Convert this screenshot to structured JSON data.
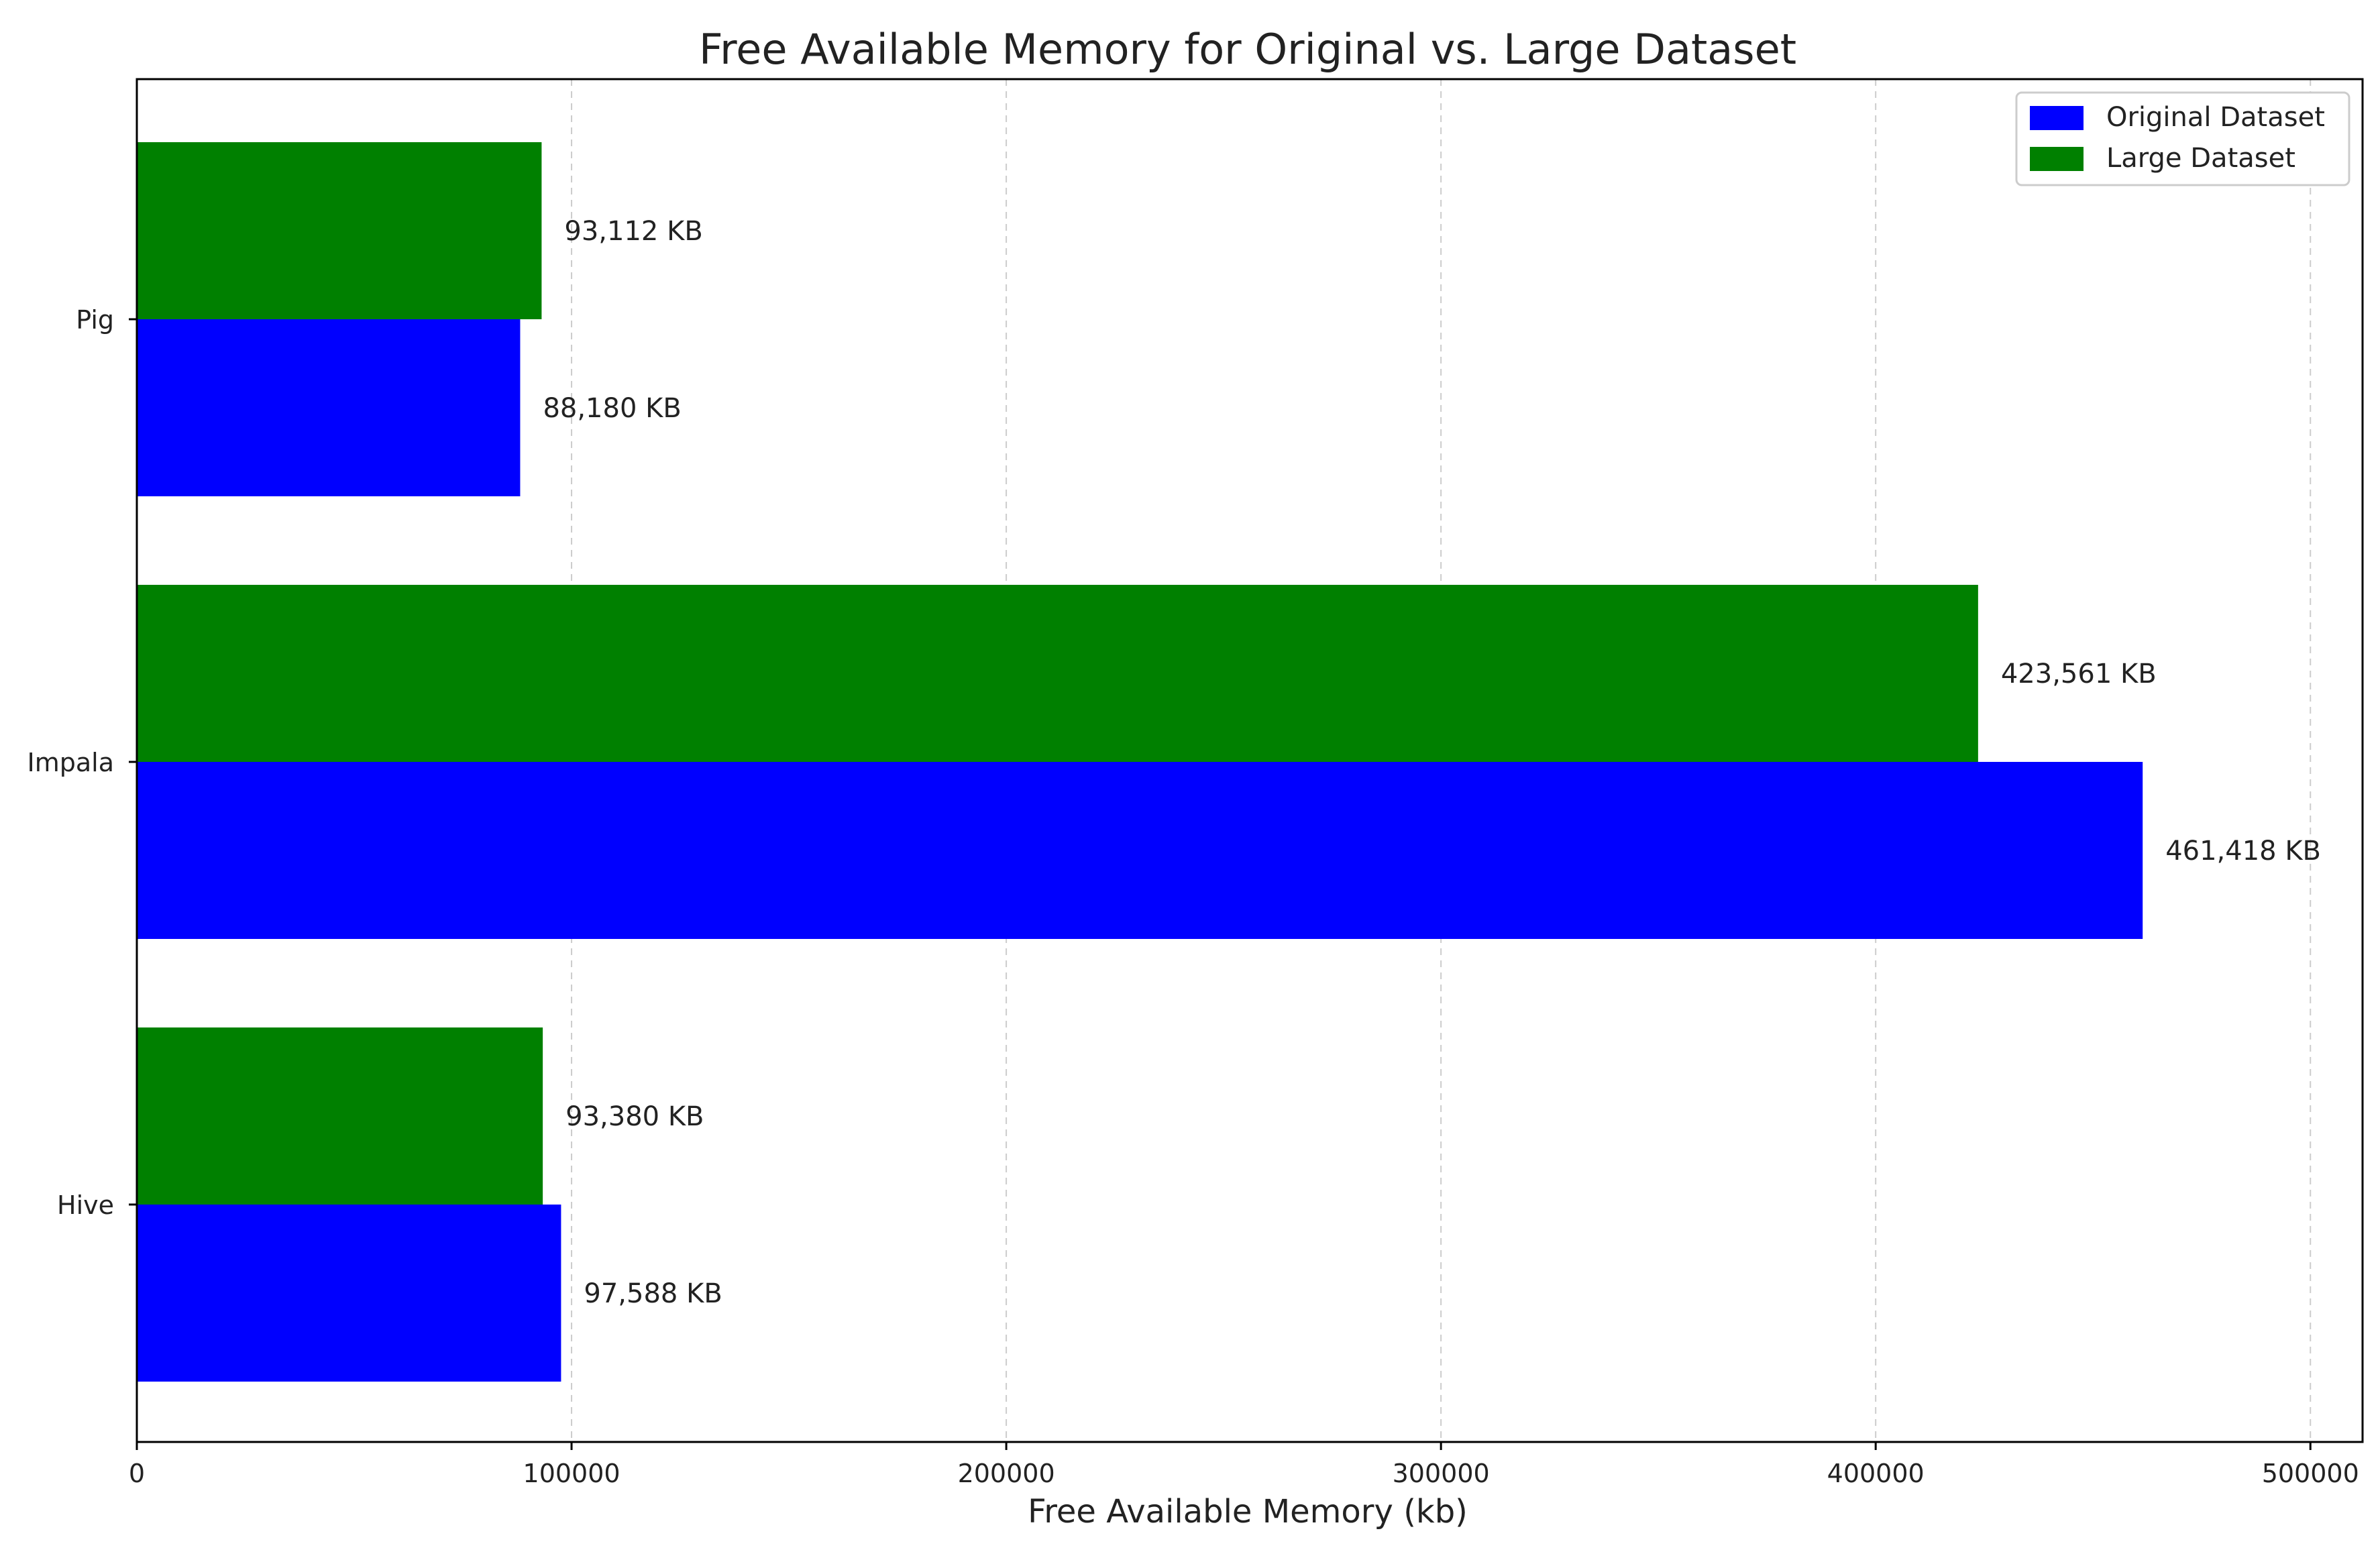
{
  "chart_data": {
    "type": "bar",
    "orientation": "horizontal",
    "title": "Free Available Memory for Original vs. Large Dataset",
    "xlabel": "Free Available Memory (kb)",
    "ylabel": "",
    "categories": [
      "Hive",
      "Impala",
      "Pig"
    ],
    "series": [
      {
        "name": "Original Dataset",
        "color": "#0000ff",
        "values": [
          97588,
          461418,
          88180
        ],
        "labels": [
          "97,588 KB",
          "461,418 KB",
          "88,180 KB"
        ]
      },
      {
        "name": "Large Dataset",
        "color": "#008000",
        "values": [
          93380,
          423561,
          93112
        ],
        "labels": [
          "93,380 KB",
          "423,561 KB",
          "93,112 KB"
        ]
      }
    ],
    "xlim": [
      0,
      512000
    ],
    "xticks": [
      0,
      100000,
      200000,
      300000,
      400000,
      500000
    ],
    "xtick_labels": [
      "0",
      "100000",
      "200000",
      "300000",
      "400000",
      "500000"
    ],
    "grid": "x-dashed",
    "legend_position": "top-right"
  }
}
